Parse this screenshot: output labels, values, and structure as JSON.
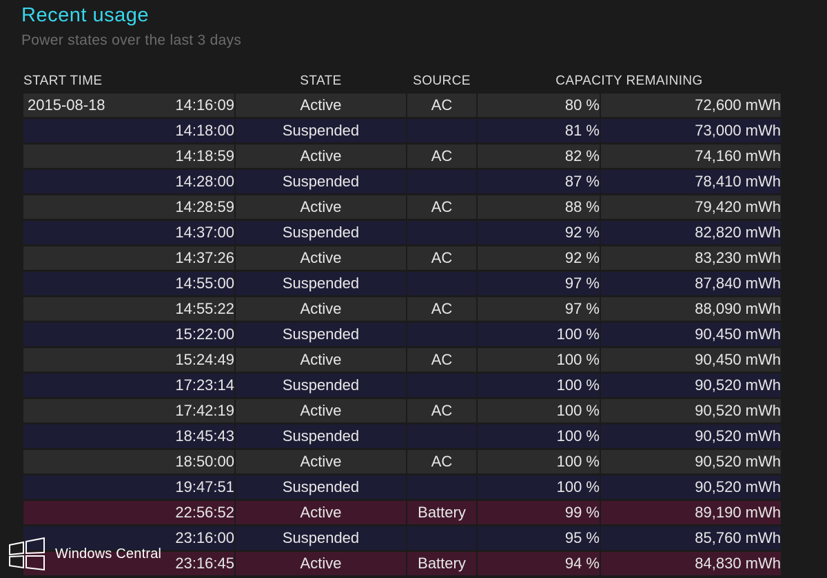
{
  "header": {
    "title": "Recent usage",
    "subtitle": "Power states over the last 3 days"
  },
  "table": {
    "columns": {
      "start_time": "START TIME",
      "state": "STATE",
      "source": "SOURCE",
      "capacity": "CAPACITY REMAINING"
    },
    "rows": [
      {
        "date": "2015-08-18",
        "time": "14:16:09",
        "state": "Active",
        "source": "AC",
        "percent": "80 %",
        "mwh": "72,600 mWh"
      },
      {
        "date": "",
        "time": "14:18:00",
        "state": "Suspended",
        "source": "",
        "percent": "81 %",
        "mwh": "73,000 mWh"
      },
      {
        "date": "",
        "time": "14:18:59",
        "state": "Active",
        "source": "AC",
        "percent": "82 %",
        "mwh": "74,160 mWh"
      },
      {
        "date": "",
        "time": "14:28:00",
        "state": "Suspended",
        "source": "",
        "percent": "87 %",
        "mwh": "78,410 mWh"
      },
      {
        "date": "",
        "time": "14:28:59",
        "state": "Active",
        "source": "AC",
        "percent": "88 %",
        "mwh": "79,420 mWh"
      },
      {
        "date": "",
        "time": "14:37:00",
        "state": "Suspended",
        "source": "",
        "percent": "92 %",
        "mwh": "82,820 mWh"
      },
      {
        "date": "",
        "time": "14:37:26",
        "state": "Active",
        "source": "AC",
        "percent": "92 %",
        "mwh": "83,230 mWh"
      },
      {
        "date": "",
        "time": "14:55:00",
        "state": "Suspended",
        "source": "",
        "percent": "97 %",
        "mwh": "87,840 mWh"
      },
      {
        "date": "",
        "time": "14:55:22",
        "state": "Active",
        "source": "AC",
        "percent": "97 %",
        "mwh": "88,090 mWh"
      },
      {
        "date": "",
        "time": "15:22:00",
        "state": "Suspended",
        "source": "",
        "percent": "100 %",
        "mwh": "90,450 mWh"
      },
      {
        "date": "",
        "time": "15:24:49",
        "state": "Active",
        "source": "AC",
        "percent": "100 %",
        "mwh": "90,450 mWh"
      },
      {
        "date": "",
        "time": "17:23:14",
        "state": "Suspended",
        "source": "",
        "percent": "100 %",
        "mwh": "90,520 mWh"
      },
      {
        "date": "",
        "time": "17:42:19",
        "state": "Active",
        "source": "AC",
        "percent": "100 %",
        "mwh": "90,520 mWh"
      },
      {
        "date": "",
        "time": "18:45:43",
        "state": "Suspended",
        "source": "",
        "percent": "100 %",
        "mwh": "90,520 mWh"
      },
      {
        "date": "",
        "time": "18:50:00",
        "state": "Active",
        "source": "AC",
        "percent": "100 %",
        "mwh": "90,520 mWh"
      },
      {
        "date": "",
        "time": "19:47:51",
        "state": "Suspended",
        "source": "",
        "percent": "100 %",
        "mwh": "90,520 mWh"
      },
      {
        "date": "",
        "time": "22:56:52",
        "state": "Active",
        "source": "Battery",
        "percent": "99 %",
        "mwh": "89,190 mWh"
      },
      {
        "date": "",
        "time": "23:16:00",
        "state": "Suspended",
        "source": "",
        "percent": "95 %",
        "mwh": "85,760 mWh"
      },
      {
        "date": "",
        "time": "23:16:45",
        "state": "Active",
        "source": "Battery",
        "percent": "94 %",
        "mwh": "84,830 mWh"
      }
    ]
  },
  "watermark": {
    "label": "Windows Central",
    "icon": "windows-logo-icon"
  },
  "colors": {
    "title": "#39d6ec",
    "subtitle": "#6c6c6c",
    "background": "#1b1b1b",
    "row_active": "#2c2c2c",
    "row_suspended": "#1d1c35",
    "row_battery": "#41182b"
  }
}
